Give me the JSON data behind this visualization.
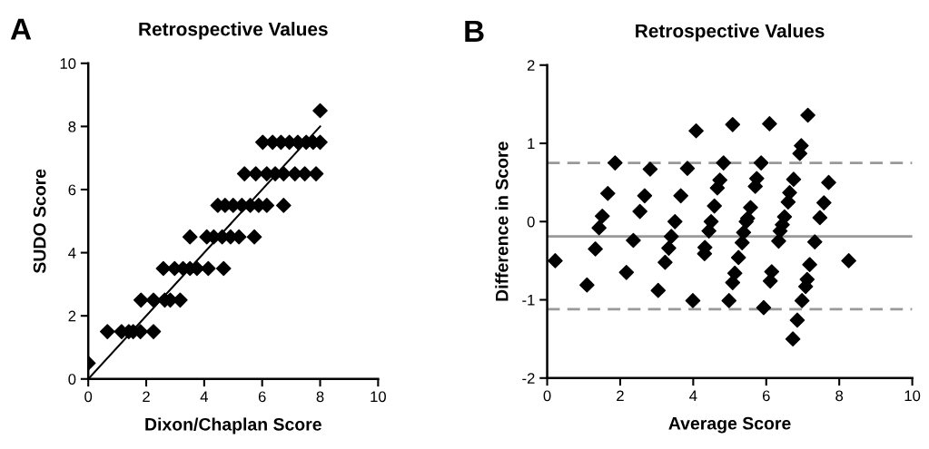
{
  "chart_data": [
    {
      "type": "scatter",
      "title": "Retrospective Values",
      "xlabel": "Dixon/Chaplan Score",
      "ylabel": "SUDO Score",
      "annotations": [
        "A"
      ],
      "xlim": [
        0,
        10
      ],
      "ylim": [
        0,
        10
      ],
      "xticks": [
        0,
        2,
        4,
        6,
        8,
        10
      ],
      "yticks": [
        0,
        2,
        4,
        6,
        8,
        10
      ],
      "marker": "diamond",
      "grid": false,
      "series": [
        {
          "color": "#000000",
          "x": [
            0,
            0.66,
            1.15,
            1.4,
            1.55,
            1.8,
            2.25,
            1.82,
            2.25,
            2.64,
            2.83,
            3.17,
            2.59,
            2.98,
            3.27,
            3.51,
            3.75,
            4.14,
            4.67,
            3.51,
            4.09,
            4.33,
            4.62,
            4.91,
            5.2,
            5.73,
            4.47,
            4.72,
            5.0,
            5.3,
            5.59,
            5.88,
            6.16,
            6.74,
            5.39,
            5.78,
            6.16,
            6.45,
            6.74,
            7.13,
            7.47,
            7.86,
            6.02,
            6.36,
            6.65,
            6.94,
            7.23,
            7.52,
            7.76,
            8.0,
            8.0
          ],
          "values": [
            0.5,
            1.5,
            1.5,
            1.5,
            1.5,
            1.5,
            1.5,
            2.5,
            2.5,
            2.5,
            2.5,
            2.5,
            3.5,
            3.5,
            3.5,
            3.5,
            3.5,
            3.5,
            3.5,
            4.5,
            4.5,
            4.5,
            4.5,
            4.5,
            4.5,
            4.5,
            5.5,
            5.5,
            5.5,
            5.5,
            5.5,
            5.5,
            5.5,
            5.5,
            6.5,
            6.5,
            6.5,
            6.5,
            6.5,
            6.5,
            6.5,
            6.5,
            7.5,
            7.5,
            7.5,
            7.5,
            7.5,
            7.5,
            7.5,
            7.5,
            8.5
          ]
        },
        {
          "type": "line",
          "marker": "none",
          "color": "#000000",
          "x": [
            0,
            8
          ],
          "values": [
            0,
            8
          ]
        }
      ]
    },
    {
      "type": "scatter",
      "title": "Retrospective Values",
      "xlabel": "Average Score",
      "ylabel": "Difference in Score",
      "annotations": [
        "B"
      ],
      "xlim": [
        0,
        10
      ],
      "ylim": [
        -2,
        2
      ],
      "xticks": [
        0,
        2,
        4,
        6,
        8,
        10
      ],
      "yticks": [
        -2,
        -1,
        0,
        1,
        2
      ],
      "marker": "diamond",
      "grid": false,
      "ref_lines": [
        {
          "axis": "y",
          "value": 0.75,
          "label": null,
          "color": "#999999",
          "line_style": "dashed"
        },
        {
          "axis": "y",
          "value": -0.19,
          "label": null,
          "color": "#999999",
          "line_style": "solid"
        },
        {
          "axis": "y",
          "value": -1.12,
          "label": null,
          "color": "#999999",
          "line_style": "dashed"
        }
      ],
      "series": [
        {
          "color": "#000000",
          "x": [
            0.22,
            1.09,
            1.32,
            1.42,
            1.51,
            1.66,
            1.86,
            2.17,
            2.36,
            2.54,
            2.67,
            2.82,
            3.04,
            3.23,
            3.33,
            3.4,
            3.5,
            3.66,
            3.84,
            3.99,
            4.08,
            4.31,
            4.32,
            4.43,
            4.49,
            4.58,
            4.66,
            4.73,
            4.83,
            4.98,
            5.08,
            5.08,
            5.14,
            5.24,
            5.34,
            5.38,
            5.45,
            5.49,
            5.57,
            5.7,
            5.74,
            5.86,
            5.93,
            6.09,
            6.11,
            6.15,
            6.34,
            6.38,
            6.44,
            6.5,
            6.6,
            6.64,
            6.75,
            6.73,
            6.85,
            6.92,
            6.96,
            6.98,
            7.08,
            7.12,
            7.14,
            7.19,
            7.33,
            7.47,
            7.58,
            7.71,
            8.26
          ],
          "values": [
            -0.5,
            -0.81,
            -0.35,
            -0.08,
            0.07,
            0.36,
            0.75,
            -0.65,
            -0.24,
            0.13,
            0.33,
            0.67,
            -0.88,
            -0.52,
            -0.34,
            -0.19,
            0.0,
            0.33,
            0.68,
            -1.01,
            1.16,
            -0.41,
            -0.33,
            -0.12,
            0.0,
            0.2,
            0.43,
            0.53,
            0.75,
            -1.01,
            1.24,
            -0.78,
            -0.66,
            -0.46,
            -0.27,
            -0.14,
            0.0,
            0.04,
            0.18,
            0.45,
            0.55,
            0.75,
            -1.1,
            1.25,
            -0.76,
            -0.64,
            -0.25,
            -0.12,
            -0.04,
            0.06,
            0.25,
            0.37,
            0.54,
            -1.5,
            -1.26,
            0.87,
            0.97,
            -1.01,
            -0.83,
            -0.74,
            1.36,
            -0.55,
            -0.26,
            0.05,
            0.24,
            0.5,
            -0.5
          ]
        }
      ]
    }
  ]
}
